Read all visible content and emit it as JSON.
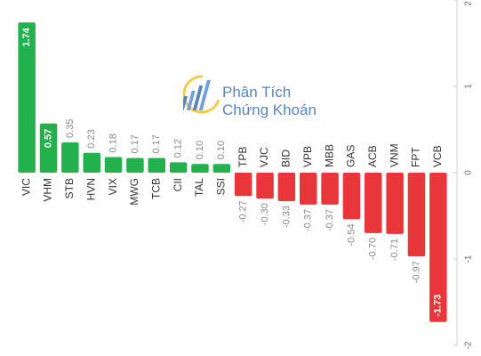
{
  "chart_data": {
    "type": "bar",
    "categories": [
      "VIC",
      "VHM",
      "STB",
      "HVN",
      "VIX",
      "MWG",
      "TCB",
      "CII",
      "TAL",
      "SSI",
      "TPB",
      "VJC",
      "BID",
      "VPB",
      "MBB",
      "GAS",
      "ACB",
      "VNM",
      "FPT",
      "VCB"
    ],
    "values": [
      1.74,
      0.57,
      0.35,
      0.23,
      0.18,
      0.17,
      0.17,
      0.12,
      0.1,
      0.1,
      -0.27,
      -0.3,
      -0.33,
      -0.37,
      -0.37,
      -0.54,
      -0.7,
      -0.71,
      -0.97,
      -1.73
    ],
    "value_labels": [
      "1.74",
      "0.57",
      "0.35",
      "0.23",
      "0.18",
      "0.17",
      "0.17",
      "0.12",
      "0.10",
      "0.10",
      "-0.27",
      "-0.30",
      "-0.33",
      "-0.37",
      "-0.37",
      "-0.54",
      "-0.70",
      "-0.71",
      "-0.97",
      "-1.73"
    ],
    "ylim": [
      -2,
      2
    ],
    "y_ticks": [
      2,
      1,
      0,
      -1,
      -2
    ],
    "y_tick_labels": [
      "2",
      "1",
      "0",
      "-1",
      "-2"
    ],
    "grid": false,
    "colors": {
      "positive": "#22b14c",
      "negative": "#e8363a",
      "axis": "#cccccc",
      "label": "#333333",
      "value_label": "#888888"
    }
  },
  "watermark": {
    "line1": "Phân Tích",
    "line2": "Chứng Khoán",
    "icon": "bar-chart-logo-icon"
  }
}
